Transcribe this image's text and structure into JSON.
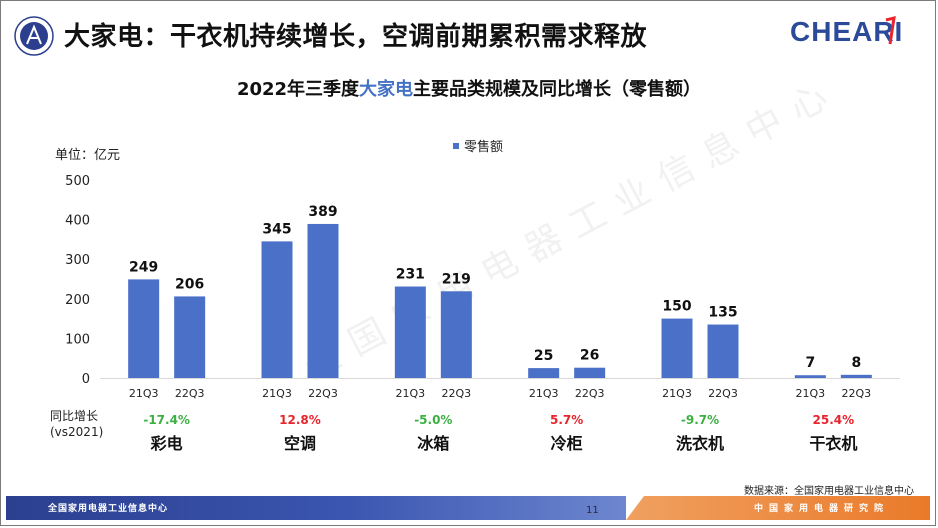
{
  "header": {
    "title": "大家电：干衣机持续增长，空调前期累积需求释放",
    "brand": "CHEARI"
  },
  "chart_data": {
    "type": "bar",
    "title_parts": [
      "2022年三季度",
      "大家电",
      "主要品类规模及同比增长（零售额）"
    ],
    "unit": "单位：亿元",
    "legend": [
      "零售额"
    ],
    "ylim": [
      0,
      500
    ],
    "yticks": [
      0,
      100,
      200,
      300,
      400,
      500
    ],
    "groups": [
      {
        "name": "彩电",
        "periods": [
          "21Q3",
          "22Q3"
        ],
        "values": [
          249,
          206
        ],
        "yoy": "-17.4%",
        "yoy_dir": "down"
      },
      {
        "name": "空调",
        "periods": [
          "21Q3",
          "22Q3"
        ],
        "values": [
          345,
          389
        ],
        "yoy": "12.8%",
        "yoy_dir": "up"
      },
      {
        "name": "冰箱",
        "periods": [
          "21Q3",
          "22Q3"
        ],
        "values": [
          231,
          219
        ],
        "yoy": "-5.0%",
        "yoy_dir": "down"
      },
      {
        "name": "冷柜",
        "periods": [
          "21Q3",
          "22Q3"
        ],
        "values": [
          25,
          26
        ],
        "yoy": "5.7%",
        "yoy_dir": "up"
      },
      {
        "name": "洗衣机",
        "periods": [
          "21Q3",
          "22Q3"
        ],
        "values": [
          150,
          135
        ],
        "yoy": "-9.7%",
        "yoy_dir": "down"
      },
      {
        "name": "干衣机",
        "periods": [
          "21Q3",
          "22Q3"
        ],
        "values": [
          7,
          8
        ],
        "yoy": "25.4%",
        "yoy_dir": "up"
      }
    ],
    "yoy_label": [
      "同比增长",
      "(vs2021)"
    ],
    "colors": {
      "bar": "#4a70c8",
      "up": "#e8242c",
      "down": "#3cb043"
    }
  },
  "source": "数据来源：全国家用电器工业信息中心",
  "footer": {
    "left_text": "全国家用电器工业信息中心",
    "page": "11",
    "right_text": "中国家用电器研究院"
  },
  "watermark": "全国家用电器工业信息中心"
}
